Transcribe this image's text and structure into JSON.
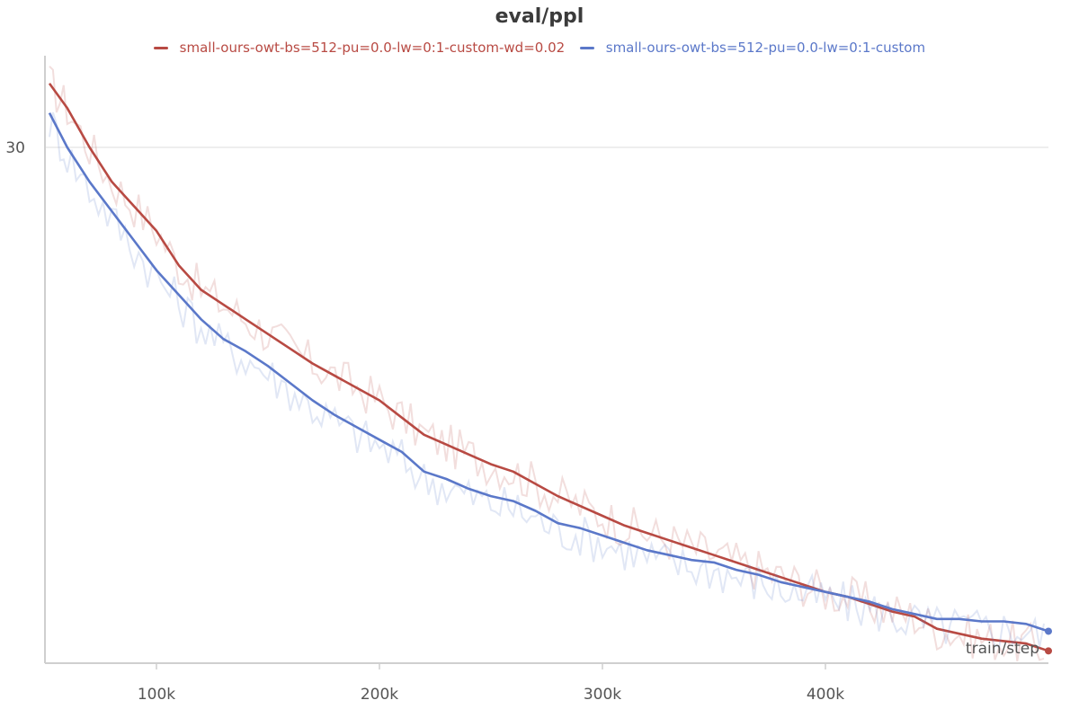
{
  "chart_data": {
    "type": "line",
    "title": "eval/ppl",
    "xlabel": "train/step",
    "ylabel": "",
    "xlim": [
      50000,
      500000
    ],
    "ylim": [
      19.5,
      31.5
    ],
    "x_ticks": [
      {
        "value": 100000,
        "label": "100k"
      },
      {
        "value": 200000,
        "label": "200k"
      },
      {
        "value": 300000,
        "label": "300k"
      },
      {
        "value": 400000,
        "label": "400k"
      }
    ],
    "y_ticks": [
      {
        "value": 30,
        "label": "30"
      }
    ],
    "grid": "horizontal",
    "legend_position": "top-center",
    "series": [
      {
        "name": "small-ours-owt-bs=512-pu=0.0-lw=0:1-custom-wd=0.02",
        "color": "#b84a43",
        "x": [
          52000,
          60000,
          70000,
          80000,
          90000,
          100000,
          110000,
          120000,
          130000,
          140000,
          150000,
          160000,
          170000,
          180000,
          190000,
          200000,
          210000,
          220000,
          230000,
          240000,
          250000,
          260000,
          270000,
          280000,
          290000,
          300000,
          310000,
          320000,
          330000,
          340000,
          350000,
          360000,
          370000,
          380000,
          390000,
          400000,
          410000,
          420000,
          430000,
          440000,
          450000,
          460000,
          470000,
          480000,
          490000,
          500000
        ],
        "values": [
          31.3,
          30.8,
          30.0,
          29.3,
          28.8,
          28.3,
          27.6,
          27.1,
          26.8,
          26.5,
          26.2,
          25.9,
          25.6,
          25.35,
          25.1,
          24.85,
          24.5,
          24.15,
          23.95,
          23.75,
          23.55,
          23.4,
          23.15,
          22.9,
          22.7,
          22.5,
          22.3,
          22.15,
          22.0,
          21.85,
          21.7,
          21.55,
          21.4,
          21.25,
          21.1,
          20.95,
          20.85,
          20.7,
          20.55,
          20.45,
          20.2,
          20.1,
          20.0,
          19.95,
          19.9,
          19.75
        ]
      },
      {
        "name": "small-ours-owt-bs=512-pu=0.0-lw=0:1-custom",
        "color": "#5b78c9",
        "x": [
          52000,
          60000,
          70000,
          80000,
          90000,
          100000,
          110000,
          120000,
          130000,
          140000,
          150000,
          160000,
          170000,
          180000,
          190000,
          200000,
          210000,
          220000,
          230000,
          240000,
          250000,
          260000,
          270000,
          280000,
          290000,
          300000,
          310000,
          320000,
          330000,
          340000,
          350000,
          360000,
          370000,
          380000,
          390000,
          400000,
          410000,
          420000,
          430000,
          440000,
          450000,
          460000,
          470000,
          480000,
          490000,
          500000
        ],
        "values": [
          30.7,
          30.0,
          29.3,
          28.7,
          28.1,
          27.5,
          27.0,
          26.5,
          26.1,
          25.85,
          25.55,
          25.2,
          24.85,
          24.55,
          24.3,
          24.05,
          23.8,
          23.4,
          23.25,
          23.05,
          22.9,
          22.8,
          22.6,
          22.35,
          22.25,
          22.1,
          21.95,
          21.8,
          21.7,
          21.6,
          21.55,
          21.4,
          21.3,
          21.15,
          21.05,
          20.95,
          20.85,
          20.75,
          20.6,
          20.5,
          20.4,
          20.4,
          20.35,
          20.35,
          20.3,
          20.15
        ]
      }
    ]
  }
}
